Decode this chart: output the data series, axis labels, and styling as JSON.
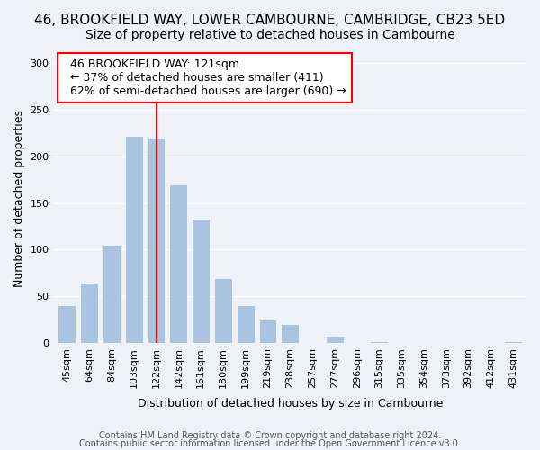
{
  "title": "46, BROOKFIELD WAY, LOWER CAMBOURNE, CAMBRIDGE, CB23 5ED",
  "subtitle": "Size of property relative to detached houses in Cambourne",
  "xlabel": "Distribution of detached houses by size in Cambourne",
  "ylabel": "Number of detached properties",
  "categories": [
    "45sqm",
    "64sqm",
    "84sqm",
    "103sqm",
    "122sqm",
    "142sqm",
    "161sqm",
    "180sqm",
    "199sqm",
    "219sqm",
    "238sqm",
    "257sqm",
    "277sqm",
    "296sqm",
    "315sqm",
    "335sqm",
    "354sqm",
    "373sqm",
    "392sqm",
    "412sqm",
    "431sqm"
  ],
  "values": [
    40,
    65,
    105,
    222,
    220,
    170,
    133,
    69,
    40,
    25,
    20,
    0,
    8,
    0,
    2,
    0,
    0,
    0,
    0,
    0,
    2
  ],
  "bar_color": "#a8c4e0",
  "vline_x": 4,
  "vline_color": "red",
  "annotation_title": "46 BROOKFIELD WAY: 121sqm",
  "annotation_line1": "← 37% of detached houses are smaller (411)",
  "annotation_line2": "62% of semi-detached houses are larger (690) →",
  "ylim": [
    0,
    310
  ],
  "footnote1": "Contains HM Land Registry data © Crown copyright and database right 2024.",
  "footnote2": "Contains public sector information licensed under the Open Government Licence v3.0.",
  "background_color": "#eef2f7",
  "title_fontsize": 11,
  "subtitle_fontsize": 10,
  "axis_label_fontsize": 9,
  "tick_fontsize": 8,
  "annotation_fontsize": 9,
  "footnote_fontsize": 7
}
